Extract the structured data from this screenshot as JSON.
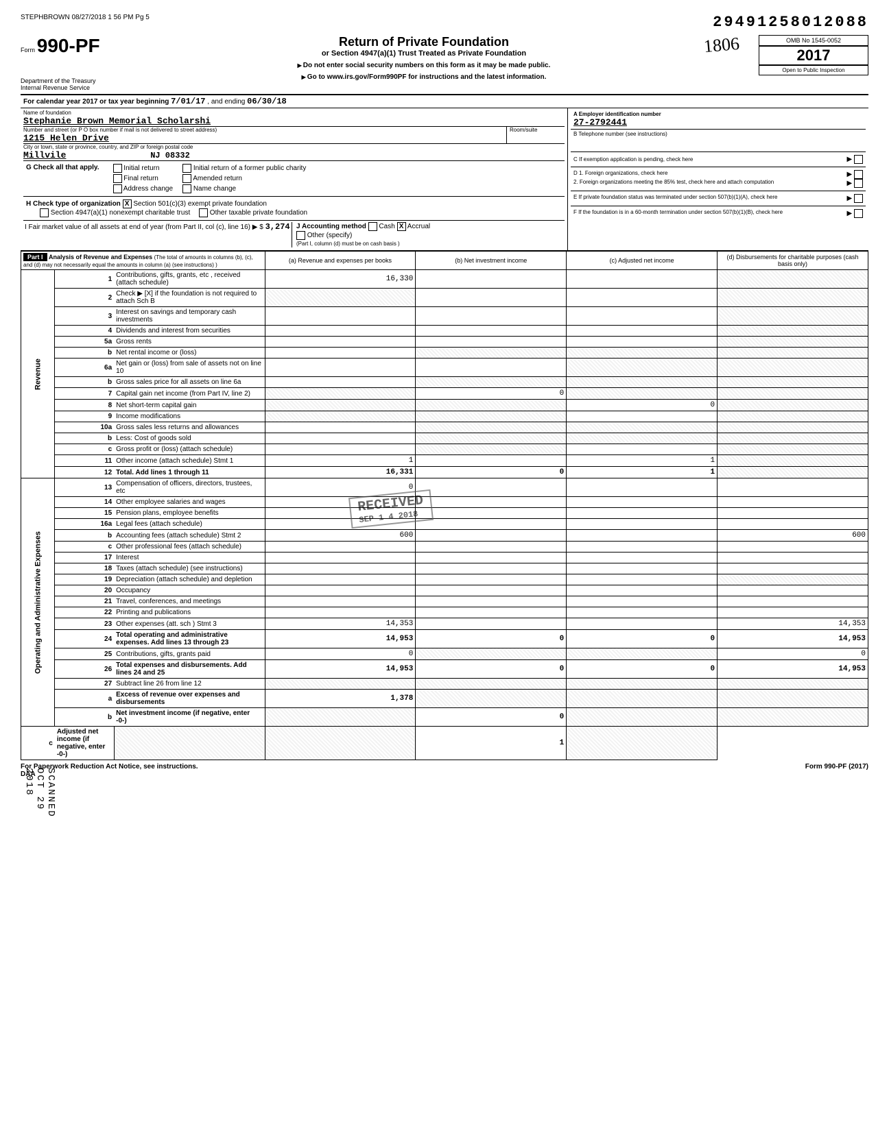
{
  "header_stamp": "STEPHBROWN 08/27/2018 1 56 PM Pg 5",
  "top_code": "29491258012088",
  "form": {
    "prefix": "Form",
    "number": "990-PF",
    "dept": "Department of the Treasury",
    "irs": "Internal Revenue Service",
    "title": "Return of Private Foundation",
    "subtitle": "or Section 4947(a)(1) Trust Treated as Private Foundation",
    "notice1": "Do not enter social security numbers on this form as it may be made public.",
    "notice2": "Go to www.irs.gov/Form990PF for instructions and the latest information.",
    "handwritten": "1806",
    "omb": "OMB No 1545-0052",
    "year": "2017",
    "inspection": "Open to Public Inspection"
  },
  "period": {
    "label": "For calendar year 2017 or tax year beginning",
    "begin": "7/01/17",
    "mid": ", and ending",
    "end": "06/30/18"
  },
  "name_block": {
    "name_label": "Name of foundation",
    "name": "Stephanie Brown Memorial Scholarshi",
    "street_label": "Number and street (or P O  box number if mail is not delivered to street address)",
    "street": "1215 Helen Drive",
    "room_label": "Room/suite",
    "city_label": "City or town, state or province, country, and ZIP or foreign postal code",
    "city": "Millvile",
    "state_zip": "NJ  08332"
  },
  "right_block": {
    "a_label": "A    Employer identification number",
    "ein": "27-2792441",
    "b_label": "B    Telephone number (see instructions)",
    "c_label": "C    If exemption application is pending, check here",
    "d1": "D   1.  Foreign organizations, check here",
    "d2": "2.  Foreign organizations meeting the 85% test, check here and attach computation",
    "e": "E    If private foundation status was terminated under section 507(b)(1)(A), check here",
    "f": "F    If the foundation is in a 60-month termination under section 507(b)(1)(B), check here"
  },
  "line_g": {
    "label": "G  Check all that apply.",
    "opts": [
      "Initial return",
      "Final return",
      "Address change",
      "Initial return of a former public charity",
      "Amended return",
      "Name change"
    ]
  },
  "line_h": {
    "label": "H  Check type of organization",
    "opt1": "Section 501(c)(3) exempt private foundation",
    "opt2": "Section 4947(a)(1) nonexempt charitable trust",
    "opt3": "Other taxable private foundation"
  },
  "line_i": {
    "label": "I   Fair market value of all assets at end of year (from Part II, col (c), line 16) ▶  $",
    "amount": "3,274",
    "j_label": "J   Accounting method",
    "cash": "Cash",
    "accrual": "Accrual",
    "other": "Other (specify)",
    "note": "(Part I, column (d) must be on cash basis )"
  },
  "part1": {
    "label": "Part I",
    "title": "Analysis of Revenue and Expenses",
    "note": "(The total of amounts in columns (b), (c), and (d) may not necessarily equal the amounts in column (a) (see instructions) )",
    "cols": {
      "a": "(a) Revenue and expenses per books",
      "b": "(b) Net investment income",
      "c": "(c) Adjusted net income",
      "d": "(d) Disbursements for charitable purposes (cash basis only)"
    }
  },
  "rev_label": "Revenue",
  "opex_label": "Operating and Administrative Expenses",
  "lines": [
    {
      "no": "1",
      "desc": "Contributions, gifts, grants, etc , received (attach schedule)",
      "a": "16,330",
      "b": "",
      "c": "",
      "d": "",
      "shade_d": true
    },
    {
      "no": "2",
      "desc": "Check ▶ [X] if the foundation is not required to attach Sch B",
      "a": "",
      "b": "",
      "c": "",
      "d": "",
      "shade_a": true,
      "shade_d": true
    },
    {
      "no": "3",
      "desc": "Interest on savings and temporary cash investments",
      "a": "",
      "b": "",
      "c": "",
      "d": "",
      "shade_d": true
    },
    {
      "no": "4",
      "desc": "Dividends and interest from securities",
      "a": "",
      "b": "",
      "c": "",
      "d": "",
      "shade_d": true
    },
    {
      "no": "5a",
      "desc": "Gross rents",
      "a": "",
      "b": "",
      "c": "",
      "d": "",
      "shade_d": true
    },
    {
      "no": "b",
      "desc": "Net rental income or (loss)",
      "a": "",
      "b": "",
      "c": "",
      "d": "",
      "shade_b": true,
      "shade_c": true,
      "shade_d": true
    },
    {
      "no": "6a",
      "desc": "Net gain or (loss) from sale of assets not on line 10",
      "a": "",
      "b": "",
      "c": "",
      "d": "",
      "shade_c": true,
      "shade_d": true
    },
    {
      "no": "b",
      "desc": "Gross sales price for all assets on line 6a",
      "a": "",
      "b": "",
      "c": "",
      "d": "",
      "shade_b": true,
      "shade_c": true,
      "shade_d": true
    },
    {
      "no": "7",
      "desc": "Capital gain net income (from Part IV, line 2)",
      "a": "",
      "b": "0",
      "c": "",
      "d": "",
      "shade_a": true,
      "shade_c": true,
      "shade_d": true
    },
    {
      "no": "8",
      "desc": "Net short-term capital gain",
      "a": "",
      "b": "",
      "c": "0",
      "d": "",
      "shade_a": true,
      "shade_b": true,
      "shade_d": true
    },
    {
      "no": "9",
      "desc": "Income modifications",
      "a": "",
      "b": "",
      "c": "",
      "d": "",
      "shade_a": true,
      "shade_b": true,
      "shade_d": true
    },
    {
      "no": "10a",
      "desc": "Gross sales less returns and allowances",
      "a": "",
      "b": "",
      "c": "",
      "d": "",
      "shade_b": true,
      "shade_c": true,
      "shade_d": true
    },
    {
      "no": "b",
      "desc": "Less: Cost of goods sold",
      "a": "",
      "b": "",
      "c": "",
      "d": "",
      "shade_b": true,
      "shade_c": true,
      "shade_d": true
    },
    {
      "no": "c",
      "desc": "Gross profit or (loss) (attach schedule)",
      "a": "",
      "b": "",
      "c": "",
      "d": "",
      "shade_b": true,
      "shade_d": true
    },
    {
      "no": "11",
      "desc": "Other income (attach schedule)     Stmt 1",
      "a": "1",
      "b": "",
      "c": "1",
      "d": "",
      "shade_d": true
    },
    {
      "no": "12",
      "desc": "Total. Add lines 1 through 11",
      "a": "16,331",
      "b": "0",
      "c": "1",
      "d": "",
      "bold": true,
      "shade_d": true
    },
    {
      "no": "13",
      "desc": "Compensation of officers, directors, trustees, etc",
      "a": "0",
      "b": "",
      "c": "",
      "d": ""
    },
    {
      "no": "14",
      "desc": "Other employee salaries and wages",
      "a": "",
      "b": "",
      "c": "",
      "d": ""
    },
    {
      "no": "15",
      "desc": "Pension plans, employee benefits",
      "a": "",
      "b": "",
      "c": "",
      "d": ""
    },
    {
      "no": "16a",
      "desc": "Legal fees (attach schedule)",
      "a": "",
      "b": "",
      "c": "",
      "d": ""
    },
    {
      "no": "b",
      "desc": "Accounting fees (attach schedule)   Stmt 2",
      "a": "600",
      "b": "",
      "c": "",
      "d": "600"
    },
    {
      "no": "c",
      "desc": "Other professional fees (attach schedule)",
      "a": "",
      "b": "",
      "c": "",
      "d": ""
    },
    {
      "no": "17",
      "desc": "Interest",
      "a": "",
      "b": "",
      "c": "",
      "d": ""
    },
    {
      "no": "18",
      "desc": "Taxes (attach schedule) (see instructions)",
      "a": "",
      "b": "",
      "c": "",
      "d": ""
    },
    {
      "no": "19",
      "desc": "Depreciation (attach schedule) and depletion",
      "a": "",
      "b": "",
      "c": "",
      "d": "",
      "shade_d": true
    },
    {
      "no": "20",
      "desc": "Occupancy",
      "a": "",
      "b": "",
      "c": "",
      "d": ""
    },
    {
      "no": "21",
      "desc": "Travel, conferences, and meetings",
      "a": "",
      "b": "",
      "c": "",
      "d": ""
    },
    {
      "no": "22",
      "desc": "Printing and publications",
      "a": "",
      "b": "",
      "c": "",
      "d": ""
    },
    {
      "no": "23",
      "desc": "Other expenses (att. sch )           Stmt 3",
      "a": "14,353",
      "b": "",
      "c": "",
      "d": "14,353"
    },
    {
      "no": "24",
      "desc": "Total operating and administrative expenses. Add lines 13 through 23",
      "a": "14,953",
      "b": "0",
      "c": "0",
      "d": "14,953",
      "bold": true
    },
    {
      "no": "25",
      "desc": "Contributions, gifts, grants paid",
      "a": "0",
      "b": "",
      "c": "",
      "d": "0",
      "shade_b": true,
      "shade_c": true
    },
    {
      "no": "26",
      "desc": "Total expenses and disbursements. Add lines 24 and 25",
      "a": "14,953",
      "b": "0",
      "c": "0",
      "d": "14,953",
      "bold": true
    },
    {
      "no": "27",
      "desc": "Subtract line 26 from line 12",
      "a": "",
      "b": "",
      "c": "",
      "d": "",
      "shade_a": true,
      "shade_b": true,
      "shade_c": true,
      "shade_d": true
    },
    {
      "no": "a",
      "desc": "Excess of revenue over expenses and disbursements",
      "a": "1,378",
      "b": "",
      "c": "",
      "d": "",
      "bold": true,
      "shade_b": true,
      "shade_c": true,
      "shade_d": true
    },
    {
      "no": "b",
      "desc": "Net investment income (if negative, enter -0-)",
      "a": "",
      "b": "0",
      "c": "",
      "d": "",
      "bold": true,
      "shade_a": true,
      "shade_c": true,
      "shade_d": true
    },
    {
      "no": "c",
      "desc": "Adjusted net income (if negative, enter -0-)",
      "a": "",
      "b": "",
      "c": "1",
      "d": "",
      "bold": true,
      "shade_a": true,
      "shade_b": true,
      "shade_d": true
    }
  ],
  "stamp": {
    "received": "RECEIVED",
    "date": "SEP 1 4 2018"
  },
  "scanned": "SCANNED OCT 29 2018",
  "footer": {
    "left": "For Paperwork Reduction Act Notice, see instructions.",
    "daa": "DAA",
    "right": "Form 990-PF (2017)"
  }
}
